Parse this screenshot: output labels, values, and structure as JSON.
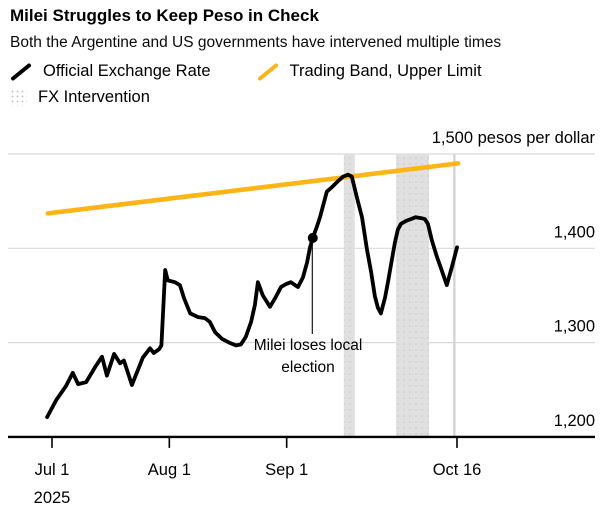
{
  "header": {
    "title": "Milei Struggles to Keep Peso in Check",
    "subtitle": "Both the Argentine and US governments have intervened multiple times"
  },
  "legend": [
    {
      "icon": "line-swatch",
      "color": "#000000",
      "label": "Official Exchange Rate"
    },
    {
      "icon": "line-swatch",
      "color": "#fcb514",
      "label": "Trading Band, Upper Limit"
    },
    {
      "icon": "area-swatch",
      "color": "#e0e0e0",
      "label": "FX Intervention"
    }
  ],
  "colors": {
    "series_black": "#000000",
    "band_yellow": "#fcb514",
    "intervention_gray": "#e0e0e0",
    "intervention_dots": "#c9c9c9",
    "gridline": "#d9d9d9",
    "marker_line": "#d4d4d4",
    "axis": "#000000"
  },
  "chart_data": {
    "type": "line",
    "unit_label": "1,500 pesos per dollar",
    "x_axis": {
      "note": "day = days after Jul 1 2025",
      "range_days": [
        -1.5,
        108.5
      ],
      "ticks": [
        {
          "day": 0,
          "label": "Jul 1",
          "sublabel": "2025"
        },
        {
          "day": 31,
          "label": "Aug 1",
          "sublabel": ""
        },
        {
          "day": 62,
          "label": "Sep 1",
          "sublabel": ""
        },
        {
          "day": 107,
          "label": "Oct 16",
          "sublabel": ""
        }
      ]
    },
    "y_axis": {
      "unit": "pesos per dollar",
      "min": 1200,
      "max": 1500,
      "gridlines": [
        1500,
        1400,
        1300
      ],
      "labels": [
        {
          "value": 1400,
          "label": "1,400"
        },
        {
          "value": 1300,
          "label": "1,300"
        },
        {
          "value": 1200,
          "label": "1,200"
        }
      ]
    },
    "series": [
      {
        "name": "Official Exchange Rate",
        "color": "#000000",
        "points": [
          [
            -1.3,
            1221
          ],
          [
            1.1,
            1239
          ],
          [
            3.7,
            1254
          ],
          [
            5.5,
            1268
          ],
          [
            6.9,
            1256
          ],
          [
            9,
            1258
          ],
          [
            11.4,
            1274
          ],
          [
            13.2,
            1285
          ],
          [
            14.5,
            1265
          ],
          [
            16.4,
            1288
          ],
          [
            18,
            1278
          ],
          [
            19,
            1281
          ],
          [
            21.1,
            1255
          ],
          [
            24,
            1284
          ],
          [
            25.9,
            1294
          ],
          [
            26.9,
            1289
          ],
          [
            28.3,
            1293
          ],
          [
            28.9,
            1297
          ],
          [
            29.9,
            1377
          ],
          [
            30.6,
            1366
          ],
          [
            32.5,
            1364
          ],
          [
            33.8,
            1361
          ],
          [
            34.9,
            1347
          ],
          [
            36.5,
            1331
          ],
          [
            38.6,
            1327
          ],
          [
            40.4,
            1326
          ],
          [
            41.7,
            1322
          ],
          [
            43.1,
            1311
          ],
          [
            44.9,
            1304
          ],
          [
            46.8,
            1300
          ],
          [
            48.6,
            1297
          ],
          [
            49.9,
            1298
          ],
          [
            51.2,
            1306
          ],
          [
            52.6,
            1322
          ],
          [
            53.6,
            1340
          ],
          [
            54.4,
            1364
          ],
          [
            55.7,
            1350
          ],
          [
            57.6,
            1338
          ],
          [
            59.2,
            1349
          ],
          [
            60.5,
            1359
          ],
          [
            61.8,
            1362
          ],
          [
            63.1,
            1364
          ],
          [
            64.2,
            1361
          ],
          [
            65,
            1359
          ],
          [
            66.3,
            1369
          ],
          [
            67.4,
            1385
          ],
          [
            68.1,
            1400
          ],
          [
            68.9,
            1411
          ],
          [
            70,
            1423
          ],
          [
            70.8,
            1433
          ],
          [
            72.6,
            1460
          ],
          [
            74,
            1465
          ],
          [
            75.5,
            1471
          ],
          [
            76.9,
            1476
          ],
          [
            78.2,
            1478
          ],
          [
            79.2,
            1476
          ],
          [
            80.6,
            1453
          ],
          [
            81.9,
            1433
          ],
          [
            83.2,
            1399
          ],
          [
            84.3,
            1375
          ],
          [
            85.3,
            1349
          ],
          [
            86.1,
            1337
          ],
          [
            86.9,
            1331
          ],
          [
            88,
            1348
          ],
          [
            88.8,
            1365
          ],
          [
            89.8,
            1388
          ],
          [
            90.6,
            1406
          ],
          [
            91.4,
            1420
          ],
          [
            92.2,
            1426
          ],
          [
            93.5,
            1429
          ],
          [
            94.8,
            1431
          ],
          [
            96.1,
            1433
          ],
          [
            97.5,
            1432
          ],
          [
            98.5,
            1431
          ],
          [
            99.3,
            1426
          ],
          [
            100.4,
            1408
          ],
          [
            101.7,
            1391
          ],
          [
            103,
            1376
          ],
          [
            104.3,
            1361
          ],
          [
            105.7,
            1381
          ],
          [
            107,
            1401
          ]
        ]
      },
      {
        "name": "Trading Band, Upper Limit",
        "color": "#fcb514",
        "points": [
          [
            -1.1,
            1437
          ],
          [
            107.3,
            1490
          ]
        ]
      }
    ],
    "interventions": [
      {
        "from_day": 77.1,
        "to_day": 80.0
      },
      {
        "from_day": 90.9,
        "to_day": 99.6
      }
    ],
    "marker_line_day": 106.3,
    "annotation": {
      "lines": [
        "Milei loses local",
        "election"
      ],
      "point": {
        "day": 68.9,
        "value": 1411
      }
    }
  }
}
